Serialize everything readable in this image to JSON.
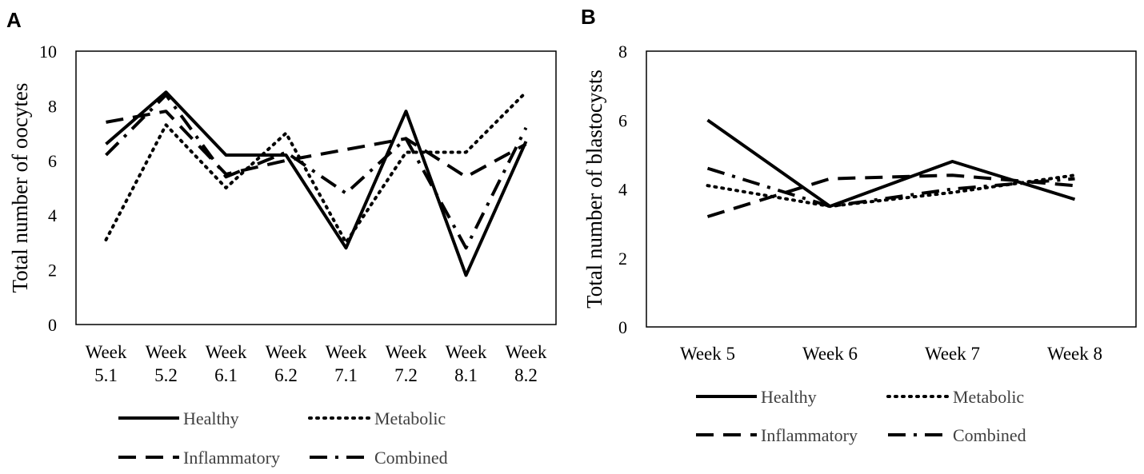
{
  "chart_data": [
    {
      "panel": "A",
      "type": "line",
      "ylabel": "Total number of oocytes",
      "xlabel": "",
      "ylim": [
        0,
        10
      ],
      "yticks": [
        "0",
        "2",
        "4",
        "6",
        "8",
        "10"
      ],
      "categories": [
        [
          "Week",
          "5.1"
        ],
        [
          "Week",
          "5.2"
        ],
        [
          "Week",
          "6.1"
        ],
        [
          "Week",
          "6.2"
        ],
        [
          "Week",
          "7.1"
        ],
        [
          "Week",
          "7.2"
        ],
        [
          "Week",
          "8.1"
        ],
        [
          "Week",
          "8.2"
        ]
      ],
      "series": [
        {
          "name": "Healthy",
          "style": "solid",
          "values": [
            6.6,
            8.5,
            6.2,
            6.2,
            2.8,
            7.8,
            1.8,
            6.7
          ]
        },
        {
          "name": "Metabolic",
          "style": "dotted",
          "values": [
            3.1,
            7.3,
            5.0,
            7.0,
            3.0,
            6.3,
            6.3,
            8.5
          ]
        },
        {
          "name": "Inflammatory",
          "style": "dashed",
          "values": [
            7.4,
            7.8,
            5.5,
            6.0,
            6.4,
            6.8,
            5.4,
            6.6
          ]
        },
        {
          "name": "Combined",
          "style": "dashdot",
          "values": [
            6.2,
            8.4,
            5.4,
            6.3,
            4.8,
            6.8,
            2.8,
            7.2
          ]
        }
      ]
    },
    {
      "panel": "B",
      "type": "line",
      "ylabel": "Total number of blastocysts",
      "xlabel": "",
      "ylim": [
        0,
        8
      ],
      "yticks": [
        "0",
        "2",
        "4",
        "6",
        "8"
      ],
      "categories": [
        [
          "Week 5"
        ],
        [
          "Week 6"
        ],
        [
          "Week 7"
        ],
        [
          "Week 8"
        ]
      ],
      "series": [
        {
          "name": "Healthy",
          "style": "solid",
          "values": [
            6.0,
            3.5,
            4.8,
            3.7
          ]
        },
        {
          "name": "Metabolic",
          "style": "dotted",
          "values": [
            4.1,
            3.5,
            3.9,
            4.4
          ]
        },
        {
          "name": "Inflammatory",
          "style": "dashed",
          "values": [
            3.2,
            4.3,
            4.4,
            4.1
          ]
        },
        {
          "name": "Combined",
          "style": "dashdot",
          "values": [
            4.6,
            3.5,
            4.0,
            4.3
          ]
        }
      ]
    }
  ]
}
